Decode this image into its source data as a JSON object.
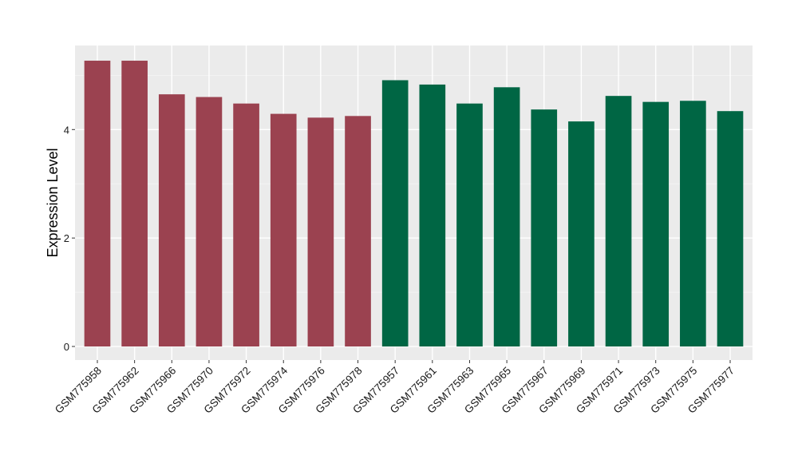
{
  "chart_data": {
    "type": "bar",
    "title": "",
    "xlabel": "",
    "ylabel": "Expression Level",
    "ylim": [
      -0.25,
      5.55
    ],
    "yticks": [
      0,
      2,
      4
    ],
    "grid": true,
    "legend": "none",
    "colors": {
      "panel": "#EBEBEB",
      "grid_major": "#FFFFFF",
      "grid_minor": "#F5F5F5",
      "group_a": "#9B4250",
      "group_b": "#006644",
      "tick_text": "#1A1A1A"
    },
    "categories": [
      "GSM775958",
      "GSM775962",
      "GSM775966",
      "GSM775970",
      "GSM775972",
      "GSM775974",
      "GSM775976",
      "GSM775978",
      "GSM775957",
      "GSM775961",
      "GSM775963",
      "GSM775965",
      "GSM775967",
      "GSM775969",
      "GSM775971",
      "GSM775973",
      "GSM775975",
      "GSM775977"
    ],
    "values": [
      5.27,
      5.27,
      4.65,
      4.6,
      4.48,
      4.29,
      4.22,
      4.25,
      4.91,
      4.83,
      4.48,
      4.78,
      4.37,
      4.15,
      4.62,
      4.51,
      4.53,
      4.34
    ],
    "groups": [
      "a",
      "a",
      "a",
      "a",
      "a",
      "a",
      "a",
      "a",
      "b",
      "b",
      "b",
      "b",
      "b",
      "b",
      "b",
      "b",
      "b",
      "b"
    ]
  }
}
